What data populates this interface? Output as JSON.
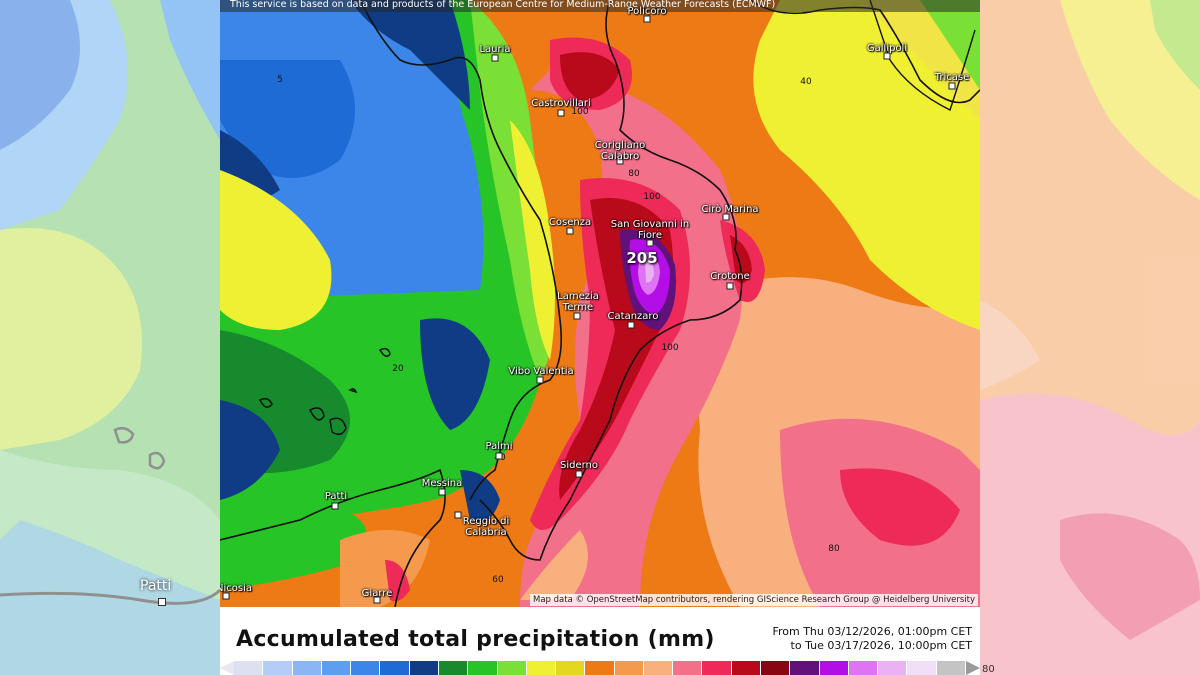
{
  "source_note": "This service is based on data and products of the European Centre for Medium-Range Weather Forecasts (ECMWF)",
  "map_credit": "Map data © OpenStreetMap contributors, rendering GIScience Research Group @ Heidelberg University",
  "title": "Accumulated total precipitation (mm)",
  "time_range": {
    "from": "From Thu 03/12/2026, 01:00pm CET",
    "to": "to Tue 03/17/2026, 10:00pm CET"
  },
  "max_value": "205",
  "cities": [
    {
      "name": "Policoro"
    },
    {
      "name": "Lauria"
    },
    {
      "name": "Gallipoli"
    },
    {
      "name": "Tricase"
    },
    {
      "name": "Castrovillari"
    },
    {
      "name": "Corigliano Calabro"
    },
    {
      "name": "Cirò Marina"
    },
    {
      "name": "Cosenza"
    },
    {
      "name": "San Giovanni in Fiore"
    },
    {
      "name": "Crotone"
    },
    {
      "name": "Lamezia Terme"
    },
    {
      "name": "Catanzaro"
    },
    {
      "name": "Vibo Valentia"
    },
    {
      "name": "Palmi"
    },
    {
      "name": "Siderno"
    },
    {
      "name": "Messina"
    },
    {
      "name": "Reggio di Calabria"
    },
    {
      "name": "Patti"
    },
    {
      "name": "Giarre"
    },
    {
      "name": "Nicosia"
    }
  ],
  "contour_labels": [
    "5",
    "40",
    "100",
    "80",
    "100",
    "20",
    "100",
    "80",
    "60",
    "60",
    "40"
  ],
  "side_labels": {
    "left_patti": "Patti",
    "right_edge": "80"
  },
  "legend_colors": [
    "#dde0f0",
    "#b4ccf6",
    "#8cb6f3",
    "#5c9ff0",
    "#3b86e8",
    "#1f6bd6",
    "#0f3c84",
    "#178a2e",
    "#27c427",
    "#7ae036",
    "#f0f032",
    "#e4d81e",
    "#ee7a16",
    "#f59a4c",
    "#f8b07e",
    "#f2708a",
    "#ee2a58",
    "#b80a1a",
    "#880612",
    "#60127a",
    "#b40ee6",
    "#de74f2",
    "#eab2f4",
    "#f0dff6",
    "#c4c4c4"
  ]
}
